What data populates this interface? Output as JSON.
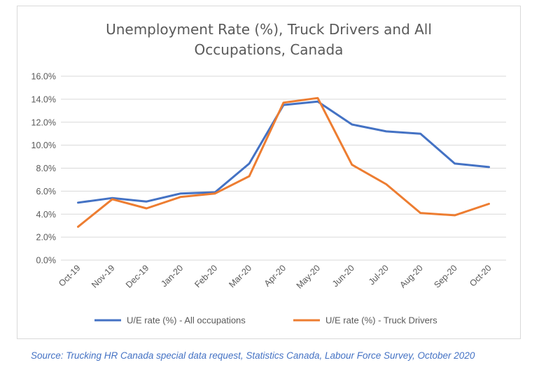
{
  "chart_data": {
    "type": "line",
    "title_lines": [
      "Unemployment Rate (%), Truck Drivers and All",
      "Occupations, Canada"
    ],
    "categories": [
      "Oct-19",
      "Nov-19",
      "Dec-19",
      "Jan-20",
      "Feb-20",
      "Mar-20",
      "Apr-20",
      "May-20",
      "Jun-20",
      "Jul-20",
      "Aug-20",
      "Sep-20",
      "Oct-20"
    ],
    "yticks": [
      "0.0%",
      "2.0%",
      "4.0%",
      "6.0%",
      "8.0%",
      "10.0%",
      "12.0%",
      "14.0%",
      "16.0%"
    ],
    "ylim": [
      0,
      16
    ],
    "ystep": 2,
    "xlabel": "",
    "ylabel": "",
    "grid": true,
    "legend_position": "bottom",
    "series": [
      {
        "name": "U/E rate (%) - All occupations",
        "color": "#4472c4",
        "values": [
          5.0,
          5.4,
          5.1,
          5.8,
          5.9,
          8.4,
          13.5,
          13.8,
          11.8,
          11.2,
          11.0,
          8.4,
          8.1
        ]
      },
      {
        "name": "U/E rate (%) - Truck Drivers",
        "color": "#ed7d31",
        "values": [
          2.9,
          5.3,
          4.5,
          5.5,
          5.8,
          7.3,
          13.7,
          14.1,
          8.3,
          6.6,
          4.1,
          3.9,
          4.9
        ]
      }
    ]
  },
  "source": "Source:  Trucking HR Canada special data request, Statistics Canada, Labour Force Survey, October 2020"
}
